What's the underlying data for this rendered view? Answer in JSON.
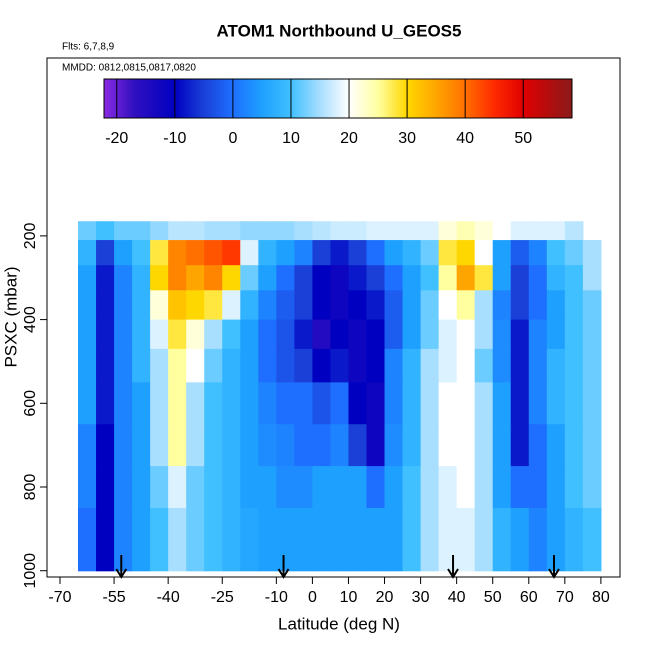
{
  "chart_data": {
    "type": "heatmap",
    "title": "ATOM1 Northbound U_GEOS5",
    "subtitle": "Flts: 6,7,8,9",
    "annotation": "MMDD: 0812,0815,0817,0820",
    "x_label": "Latitude (deg N)",
    "y_label": "PSXC (mbar)",
    "xlim": [
      -73.6,
      85.3
    ],
    "ylim": [
      1015,
      -225
    ],
    "xticks": [
      -70,
      -55,
      -40,
      -25,
      -10,
      0,
      10,
      20,
      30,
      40,
      50,
      60,
      70,
      80
    ],
    "yticks": [
      200,
      400,
      600,
      800,
      1000
    ],
    "x_edges": [
      -65,
      -60,
      -55,
      -50,
      -45,
      -40,
      -35,
      -30,
      -25,
      -20,
      -15,
      -10,
      -5,
      0,
      5,
      10,
      15,
      20,
      25,
      30,
      35,
      40,
      45,
      50,
      55,
      60,
      65,
      70,
      75,
      80
    ],
    "y_edges": [
      165,
      210,
      270,
      330,
      400,
      470,
      550,
      650,
      750,
      850,
      1000
    ],
    "z": [
      [
        12,
        10,
        12,
        12,
        14,
        16,
        16,
        15,
        15,
        14,
        14,
        14,
        15,
        16,
        17,
        17,
        18,
        18,
        18,
        18,
        22,
        24,
        22,
        20,
        18,
        18,
        18,
        16,
        null
      ],
      [
        8,
        -5,
        5,
        10,
        28,
        38,
        40,
        42,
        44,
        18,
        8,
        5,
        2,
        -5,
        -8,
        -5,
        0,
        5,
        8,
        12,
        28,
        30,
        20,
        5,
        -2,
        2,
        10,
        12,
        15
      ],
      [
        5,
        -8,
        2,
        8,
        30,
        38,
        35,
        38,
        30,
        12,
        5,
        0,
        -5,
        -10,
        -12,
        -8,
        -5,
        0,
        5,
        10,
        25,
        35,
        28,
        5,
        -5,
        0,
        8,
        10,
        15
      ],
      [
        5,
        -8,
        2,
        8,
        22,
        32,
        30,
        28,
        18,
        8,
        2,
        -2,
        -5,
        -10,
        -12,
        -10,
        -8,
        -2,
        5,
        12,
        20,
        25,
        15,
        2,
        -5,
        0,
        5,
        10,
        12
      ],
      [
        5,
        -8,
        2,
        8,
        18,
        28,
        22,
        15,
        10,
        5,
        0,
        -3,
        -8,
        -15,
        -10,
        -12,
        -10,
        -2,
        5,
        12,
        18,
        20,
        15,
        3,
        -8,
        2,
        5,
        10,
        12
      ],
      [
        5,
        -8,
        2,
        8,
        15,
        25,
        20,
        12,
        8,
        5,
        0,
        -3,
        -5,
        -10,
        -8,
        -12,
        -10,
        2,
        8,
        15,
        18,
        20,
        12,
        3,
        -8,
        2,
        8,
        10,
        12
      ],
      [
        5,
        -8,
        2,
        5,
        15,
        25,
        15,
        10,
        8,
        5,
        2,
        0,
        0,
        -3,
        0,
        -10,
        -12,
        2,
        8,
        15,
        20,
        20,
        15,
        5,
        -8,
        2,
        8,
        10,
        12
      ],
      [
        2,
        -10,
        2,
        5,
        15,
        25,
        15,
        10,
        8,
        5,
        3,
        2,
        0,
        0,
        2,
        -5,
        -12,
        3,
        8,
        15,
        20,
        20,
        15,
        5,
        -8,
        0,
        5,
        10,
        12
      ],
      [
        2,
        -10,
        2,
        5,
        12,
        18,
        12,
        10,
        8,
        5,
        5,
        3,
        3,
        5,
        5,
        5,
        0,
        5,
        10,
        15,
        18,
        20,
        15,
        5,
        0,
        0,
        5,
        10,
        12
      ],
      [
        0,
        -10,
        2,
        5,
        10,
        15,
        12,
        10,
        8,
        6,
        5,
        5,
        5,
        5,
        5,
        5,
        5,
        5,
        10,
        15,
        18,
        18,
        15,
        8,
        5,
        2,
        5,
        8,
        10
      ]
    ],
    "colorscale": [
      [
        -22.2,
        "#8a2be2"
      ],
      [
        -17,
        "#3010c0"
      ],
      [
        -10,
        "#0000c0"
      ],
      [
        -5,
        "#1a40d8"
      ],
      [
        0,
        "#1e6fff"
      ],
      [
        5,
        "#1ea0ff"
      ],
      [
        10,
        "#40c0ff"
      ],
      [
        15,
        "#a8defe"
      ],
      [
        20,
        "#ffffff"
      ],
      [
        25,
        "#ffffa0"
      ],
      [
        30,
        "#ffd700"
      ],
      [
        35,
        "#ffa500"
      ],
      [
        40,
        "#ff7000"
      ],
      [
        45,
        "#ff2a00"
      ],
      [
        50,
        "#e00000"
      ],
      [
        58.4,
        "#8b1a1a"
      ]
    ],
    "colorbar_lim": [
      -22.2,
      58.4
    ],
    "colorbar_ticks": [
      -20,
      -10,
      0,
      10,
      20,
      30,
      40,
      50
    ],
    "arrows_x": [
      -53,
      -8,
      39,
      67
    ]
  }
}
